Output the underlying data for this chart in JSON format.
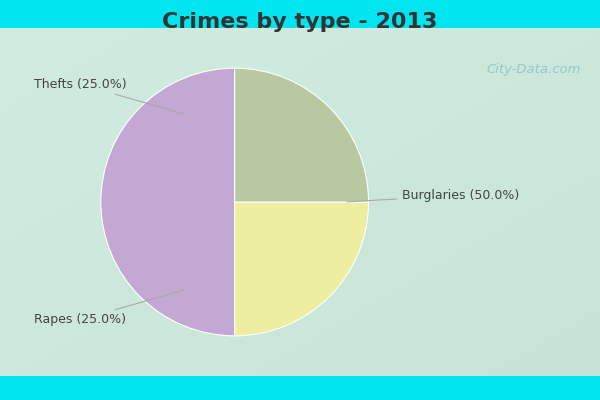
{
  "title": "Crimes by type - 2013",
  "slices": [
    {
      "label": "Burglaries (50.0%)",
      "value": 50.0,
      "color": "#c4a8d4"
    },
    {
      "label": "Thefts (25.0%)",
      "value": 25.0,
      "color": "#eeeea0"
    },
    {
      "label": "Rapes (25.0%)",
      "value": 25.0,
      "color": "#b8c8a0"
    }
  ],
  "bg_color_top": "#00e5f0",
  "bg_color_main_tl": "#c8e8d8",
  "bg_color_main_br": "#d8f0e0",
  "title_fontsize": 16,
  "title_fontweight": "bold",
  "title_color": "#333333",
  "watermark": "City-Data.com",
  "start_angle": 90,
  "label_fontsize": 9,
  "label_color": "#444444",
  "annotation_line_color": "#aaaaaa"
}
